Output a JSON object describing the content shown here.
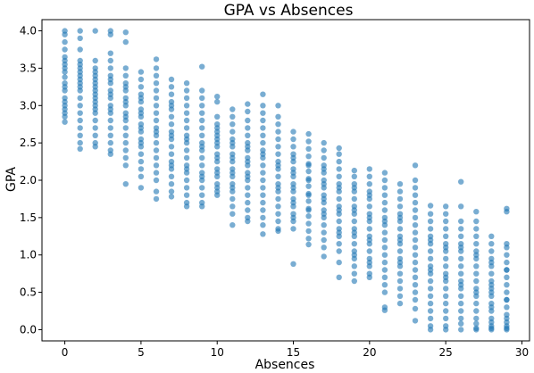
{
  "chart_data": {
    "type": "scatter",
    "title": "GPA vs Absences",
    "xlabel": "Absences",
    "ylabel": "GPA",
    "xlim": [
      -1.5,
      30.5
    ],
    "ylim": [
      -0.15,
      4.15
    ],
    "xticks": [
      0,
      5,
      10,
      15,
      20,
      25,
      30
    ],
    "yticks": [
      0.0,
      0.5,
      1.0,
      1.5,
      2.0,
      2.5,
      3.0,
      3.5,
      4.0
    ],
    "grid": false,
    "marker_color": "#1f77b4",
    "marker_alpha": 0.6,
    "series": [
      {
        "x": [
          0,
          0,
          0,
          0,
          0,
          0,
          0,
          0,
          0,
          0,
          0,
          0,
          0,
          0,
          0,
          0,
          0,
          0,
          0,
          0,
          1,
          1,
          1,
          1,
          1,
          1,
          1,
          1,
          1,
          1,
          1,
          1,
          1,
          1,
          1,
          1,
          1,
          1,
          1,
          1,
          2,
          2,
          2,
          2,
          2,
          2,
          2,
          2,
          2,
          2,
          2,
          2,
          2,
          2,
          2,
          2,
          2,
          2,
          2,
          2,
          3,
          3,
          3,
          3,
          3,
          3,
          3,
          3,
          3,
          3,
          3,
          3,
          3,
          3,
          3,
          3,
          3,
          3,
          3,
          3,
          4,
          4,
          4,
          4,
          4,
          4,
          4,
          4,
          4,
          4,
          4,
          4,
          4,
          4,
          4,
          4,
          4,
          4,
          4,
          4,
          5,
          5,
          5,
          5,
          5,
          5,
          5,
          5,
          5,
          5,
          5,
          5,
          5,
          5,
          5,
          5,
          5,
          5,
          5,
          5,
          6,
          6,
          6,
          6,
          6,
          6,
          6,
          6,
          6,
          6,
          6,
          6,
          6,
          6,
          6,
          6,
          6,
          6,
          6,
          6,
          7,
          7,
          7,
          7,
          7,
          7,
          7,
          7,
          7,
          7,
          7,
          7,
          7,
          7,
          7,
          7,
          7,
          7,
          7,
          7,
          8,
          8,
          8,
          8,
          8,
          8,
          8,
          8,
          8,
          8,
          8,
          8,
          8,
          8,
          8,
          8,
          8,
          8,
          8,
          8,
          9,
          9,
          9,
          9,
          9,
          9,
          9,
          9,
          9,
          9,
          9,
          9,
          9,
          9,
          9,
          9,
          9,
          9,
          9,
          9,
          10,
          10,
          10,
          10,
          10,
          10,
          10,
          10,
          10,
          10,
          10,
          10,
          10,
          10,
          10,
          10,
          10,
          10,
          10,
          10,
          11,
          11,
          11,
          11,
          11,
          11,
          11,
          11,
          11,
          11,
          11,
          11,
          11,
          11,
          11,
          11,
          11,
          11,
          11,
          11,
          12,
          12,
          12,
          12,
          12,
          12,
          12,
          12,
          12,
          12,
          12,
          12,
          12,
          12,
          12,
          12,
          12,
          12,
          12,
          12,
          13,
          13,
          13,
          13,
          13,
          13,
          13,
          13,
          13,
          13,
          13,
          13,
          13,
          13,
          13,
          13,
          13,
          13,
          13,
          13,
          14,
          14,
          14,
          14,
          14,
          14,
          14,
          14,
          14,
          14,
          14,
          14,
          14,
          14,
          14,
          14,
          14,
          14,
          14,
          14,
          15,
          15,
          15,
          15,
          15,
          15,
          15,
          15,
          15,
          15,
          15,
          15,
          15,
          15,
          15,
          15,
          15,
          15,
          15,
          15,
          16,
          16,
          16,
          16,
          16,
          16,
          16,
          16,
          16,
          16,
          16,
          16,
          16,
          16,
          16,
          16,
          16,
          16,
          16,
          16,
          17,
          17,
          17,
          17,
          17,
          17,
          17,
          17,
          17,
          17,
          17,
          17,
          17,
          17,
          17,
          17,
          17,
          17,
          17,
          17,
          18,
          18,
          18,
          18,
          18,
          18,
          18,
          18,
          18,
          18,
          18,
          18,
          18,
          18,
          18,
          18,
          18,
          18,
          18,
          18,
          19,
          19,
          19,
          19,
          19,
          19,
          19,
          19,
          19,
          19,
          19,
          19,
          19,
          19,
          19,
          19,
          19,
          19,
          19,
          19,
          20,
          20,
          20,
          20,
          20,
          20,
          20,
          20,
          20,
          20,
          20,
          20,
          20,
          20,
          20,
          20,
          20,
          20,
          20,
          20,
          21,
          21,
          21,
          21,
          21,
          21,
          21,
          21,
          21,
          21,
          21,
          21,
          21,
          21,
          21,
          21,
          21,
          21,
          21,
          21,
          22,
          22,
          22,
          22,
          22,
          22,
          22,
          22,
          22,
          22,
          22,
          22,
          22,
          22,
          22,
          22,
          22,
          22,
          22,
          22,
          23,
          23,
          23,
          23,
          23,
          23,
          23,
          23,
          23,
          23,
          23,
          23,
          23,
          23,
          23,
          23,
          23,
          23,
          23,
          23,
          24,
          24,
          24,
          24,
          24,
          24,
          24,
          24,
          24,
          24,
          24,
          24,
          24,
          24,
          24,
          24,
          24,
          24,
          24,
          24,
          25,
          25,
          25,
          25,
          25,
          25,
          25,
          25,
          25,
          25,
          25,
          25,
          25,
          25,
          25,
          25,
          25,
          25,
          25,
          25,
          26,
          26,
          26,
          26,
          26,
          26,
          26,
          26,
          26,
          26,
          26,
          26,
          26,
          26,
          26,
          26,
          26,
          26,
          26,
          26,
          27,
          27,
          27,
          27,
          27,
          27,
          27,
          27,
          27,
          27,
          27,
          27,
          27,
          27,
          27,
          27,
          27,
          27,
          27,
          27,
          28,
          28,
          28,
          28,
          28,
          28,
          28,
          28,
          28,
          28,
          28,
          28,
          28,
          28,
          28,
          28,
          28,
          28,
          28,
          28,
          29,
          29,
          29,
          29,
          29,
          29,
          29,
          29,
          29,
          29,
          29,
          29,
          29,
          29,
          29,
          29,
          29,
          29,
          29,
          29
        ],
        "y": [
          4.0,
          3.95,
          3.85,
          3.75,
          3.65,
          3.55,
          3.45,
          3.38,
          3.3,
          3.25,
          3.2,
          3.1,
          3.05,
          3.0,
          2.95,
          2.9,
          2.85,
          2.78,
          3.6,
          3.5,
          4.0,
          3.9,
          3.75,
          3.6,
          3.5,
          3.4,
          3.3,
          3.2,
          3.1,
          3.0,
          2.9,
          2.8,
          2.7,
          2.6,
          2.5,
          2.42,
          3.55,
          3.45,
          3.35,
          3.25,
          4.0,
          3.6,
          3.5,
          3.4,
          3.3,
          3.2,
          3.1,
          3.0,
          2.9,
          2.8,
          2.7,
          2.6,
          2.5,
          2.45,
          3.45,
          3.35,
          3.25,
          3.15,
          3.05,
          2.95,
          4.0,
          3.95,
          3.7,
          3.6,
          3.5,
          3.4,
          3.3,
          3.2,
          3.1,
          3.0,
          2.9,
          2.8,
          2.7,
          2.6,
          2.5,
          2.4,
          2.35,
          3.35,
          3.15,
          2.95,
          3.98,
          3.85,
          3.5,
          3.4,
          3.3,
          3.2,
          3.1,
          3.0,
          2.9,
          2.8,
          2.7,
          2.6,
          2.5,
          2.4,
          2.3,
          2.2,
          1.95,
          3.25,
          3.05,
          2.85,
          3.45,
          3.35,
          3.25,
          3.15,
          3.05,
          2.95,
          2.85,
          2.75,
          2.65,
          2.55,
          2.45,
          2.35,
          2.25,
          2.15,
          2.05,
          1.9,
          3.1,
          2.9,
          2.7,
          2.5,
          3.62,
          3.5,
          3.4,
          3.3,
          3.2,
          3.1,
          3.0,
          2.9,
          2.8,
          2.7,
          2.6,
          2.5,
          2.4,
          2.3,
          2.2,
          2.1,
          2.0,
          1.85,
          1.75,
          2.65,
          3.35,
          3.25,
          3.15,
          3.05,
          2.95,
          2.85,
          2.75,
          2.65,
          2.55,
          2.45,
          2.35,
          2.25,
          2.15,
          2.05,
          1.95,
          1.85,
          1.78,
          3.0,
          2.6,
          2.2,
          3.3,
          3.2,
          3.1,
          3.0,
          2.9,
          2.8,
          2.7,
          2.6,
          2.5,
          2.4,
          2.3,
          2.2,
          2.1,
          2.0,
          1.9,
          1.8,
          1.7,
          1.65,
          2.55,
          2.15,
          3.52,
          3.2,
          3.1,
          3.0,
          2.9,
          2.8,
          2.7,
          2.6,
          2.5,
          2.4,
          2.3,
          2.2,
          2.1,
          2.0,
          1.9,
          1.8,
          1.7,
          1.65,
          2.45,
          2.05,
          3.12,
          3.05,
          2.85,
          2.75,
          2.65,
          2.55,
          2.45,
          2.35,
          2.25,
          2.15,
          2.05,
          1.95,
          1.85,
          1.8,
          2.7,
          2.5,
          2.3,
          2.1,
          1.9,
          2.6,
          2.95,
          2.85,
          2.75,
          2.65,
          2.55,
          2.45,
          2.35,
          2.25,
          2.15,
          2.05,
          1.95,
          1.85,
          1.75,
          1.65,
          1.55,
          1.4,
          2.5,
          2.3,
          2.1,
          1.9,
          3.02,
          2.92,
          2.8,
          2.7,
          2.6,
          2.5,
          2.4,
          2.3,
          2.2,
          2.1,
          2.0,
          1.9,
          1.8,
          1.7,
          1.6,
          1.5,
          1.45,
          2.45,
          2.25,
          2.05,
          3.15,
          3.0,
          2.9,
          2.8,
          2.7,
          2.6,
          2.5,
          2.4,
          2.3,
          2.2,
          2.1,
          2.0,
          1.9,
          1.8,
          1.7,
          1.6,
          1.5,
          1.4,
          1.28,
          2.35,
          3.0,
          2.85,
          2.75,
          2.65,
          2.55,
          2.45,
          2.35,
          2.25,
          2.15,
          2.05,
          1.95,
          1.85,
          1.75,
          1.65,
          1.55,
          1.45,
          1.35,
          1.32,
          2.2,
          1.9,
          2.65,
          2.55,
          2.45,
          2.35,
          2.25,
          2.15,
          2.05,
          1.95,
          1.85,
          1.75,
          1.65,
          1.55,
          1.45,
          1.35,
          0.88,
          2.3,
          2.1,
          1.9,
          1.7,
          1.5,
          2.62,
          2.52,
          2.42,
          2.32,
          2.22,
          2.12,
          2.02,
          1.92,
          1.82,
          1.72,
          1.62,
          1.52,
          1.42,
          1.32,
          1.22,
          1.14,
          2.2,
          2.0,
          1.8,
          1.6,
          2.5,
          2.4,
          2.3,
          2.2,
          2.1,
          2.0,
          1.9,
          1.8,
          1.7,
          1.6,
          1.5,
          1.4,
          1.3,
          1.2,
          1.1,
          0.98,
          2.15,
          1.95,
          1.75,
          1.55,
          2.43,
          2.35,
          2.25,
          2.15,
          2.05,
          1.95,
          1.85,
          1.75,
          1.65,
          1.55,
          1.45,
          1.35,
          1.25,
          1.15,
          1.05,
          0.9,
          0.7,
          1.9,
          1.6,
          1.3,
          2.13,
          2.05,
          1.95,
          1.85,
          1.75,
          1.65,
          1.55,
          1.45,
          1.35,
          1.25,
          1.15,
          1.05,
          0.95,
          0.85,
          0.75,
          0.65,
          1.9,
          1.6,
          1.3,
          1.0,
          2.15,
          2.05,
          1.95,
          1.85,
          1.75,
          1.65,
          1.55,
          1.45,
          1.35,
          1.25,
          1.15,
          1.05,
          0.95,
          0.85,
          0.75,
          0.7,
          1.8,
          1.5,
          1.2,
          0.9,
          2.1,
          2.0,
          1.9,
          1.8,
          1.7,
          1.6,
          1.5,
          1.4,
          1.3,
          1.2,
          1.1,
          1.0,
          0.9,
          0.8,
          0.7,
          0.6,
          0.5,
          0.3,
          0.26,
          1.45,
          1.95,
          1.85,
          1.75,
          1.65,
          1.55,
          1.45,
          1.35,
          1.25,
          1.15,
          1.05,
          0.95,
          0.85,
          0.75,
          0.65,
          0.55,
          0.45,
          0.35,
          1.5,
          1.2,
          0.9,
          2.2,
          2.0,
          1.9,
          1.8,
          1.7,
          1.6,
          1.5,
          1.4,
          1.3,
          1.2,
          1.1,
          1.0,
          0.9,
          0.8,
          0.7,
          0.6,
          0.5,
          0.4,
          0.28,
          0.12,
          1.66,
          1.55,
          1.45,
          1.35,
          1.25,
          1.15,
          1.05,
          0.95,
          0.85,
          0.75,
          0.65,
          0.55,
          0.45,
          0.35,
          0.25,
          0.15,
          0.05,
          0.0,
          1.2,
          0.8,
          1.65,
          1.55,
          1.45,
          1.35,
          1.25,
          1.15,
          1.05,
          0.95,
          0.85,
          0.75,
          0.65,
          0.55,
          0.45,
          0.35,
          0.25,
          0.15,
          0.05,
          0.0,
          1.1,
          0.7,
          1.98,
          1.65,
          1.45,
          1.35,
          1.25,
          1.15,
          1.05,
          0.95,
          0.85,
          0.75,
          0.65,
          0.55,
          0.45,
          0.35,
          0.25,
          0.15,
          0.08,
          0.0,
          1.1,
          0.6,
          1.58,
          1.45,
          1.35,
          1.25,
          1.15,
          1.05,
          0.95,
          0.85,
          0.75,
          0.65,
          0.55,
          0.45,
          0.35,
          0.25,
          0.15,
          0.08,
          0.02,
          0.0,
          1.0,
          0.5,
          1.25,
          1.15,
          1.05,
          0.95,
          0.85,
          0.75,
          0.65,
          0.55,
          0.45,
          0.35,
          0.25,
          0.15,
          0.1,
          0.05,
          0.02,
          0.0,
          0.9,
          0.6,
          0.3,
          0.5,
          1.62,
          1.58,
          1.15,
          1.1,
          1.0,
          0.9,
          0.8,
          0.7,
          0.6,
          0.5,
          0.4,
          0.3,
          0.2,
          0.15,
          0.1,
          0.05,
          0.02,
          0.0,
          0.8,
          0.4
        ]
      }
    ]
  }
}
